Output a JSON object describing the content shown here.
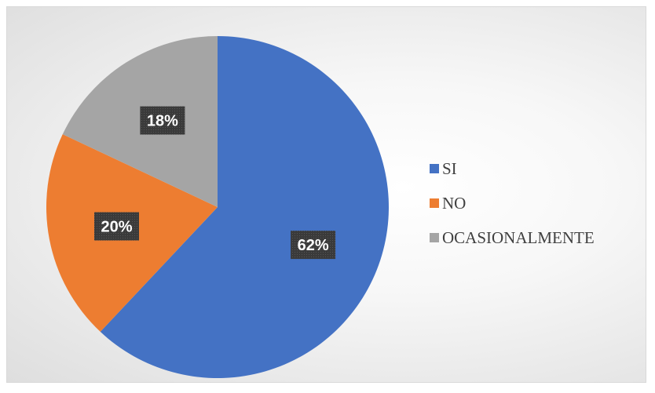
{
  "chart_data": {
    "type": "pie",
    "title": "",
    "slices": [
      {
        "label": "SI",
        "value": 62,
        "display": "62%",
        "color": "#4472C4"
      },
      {
        "label": "NO",
        "value": 20,
        "display": "20%",
        "color": "#ED7D31"
      },
      {
        "label": "OCASIONALMENTE",
        "value": 18,
        "display": "18%",
        "color": "#A5A5A5"
      }
    ],
    "start_angle_deg": 0,
    "direction": "clockwise",
    "legend_position": "right",
    "data_label_style": "dark-box-white-text"
  }
}
